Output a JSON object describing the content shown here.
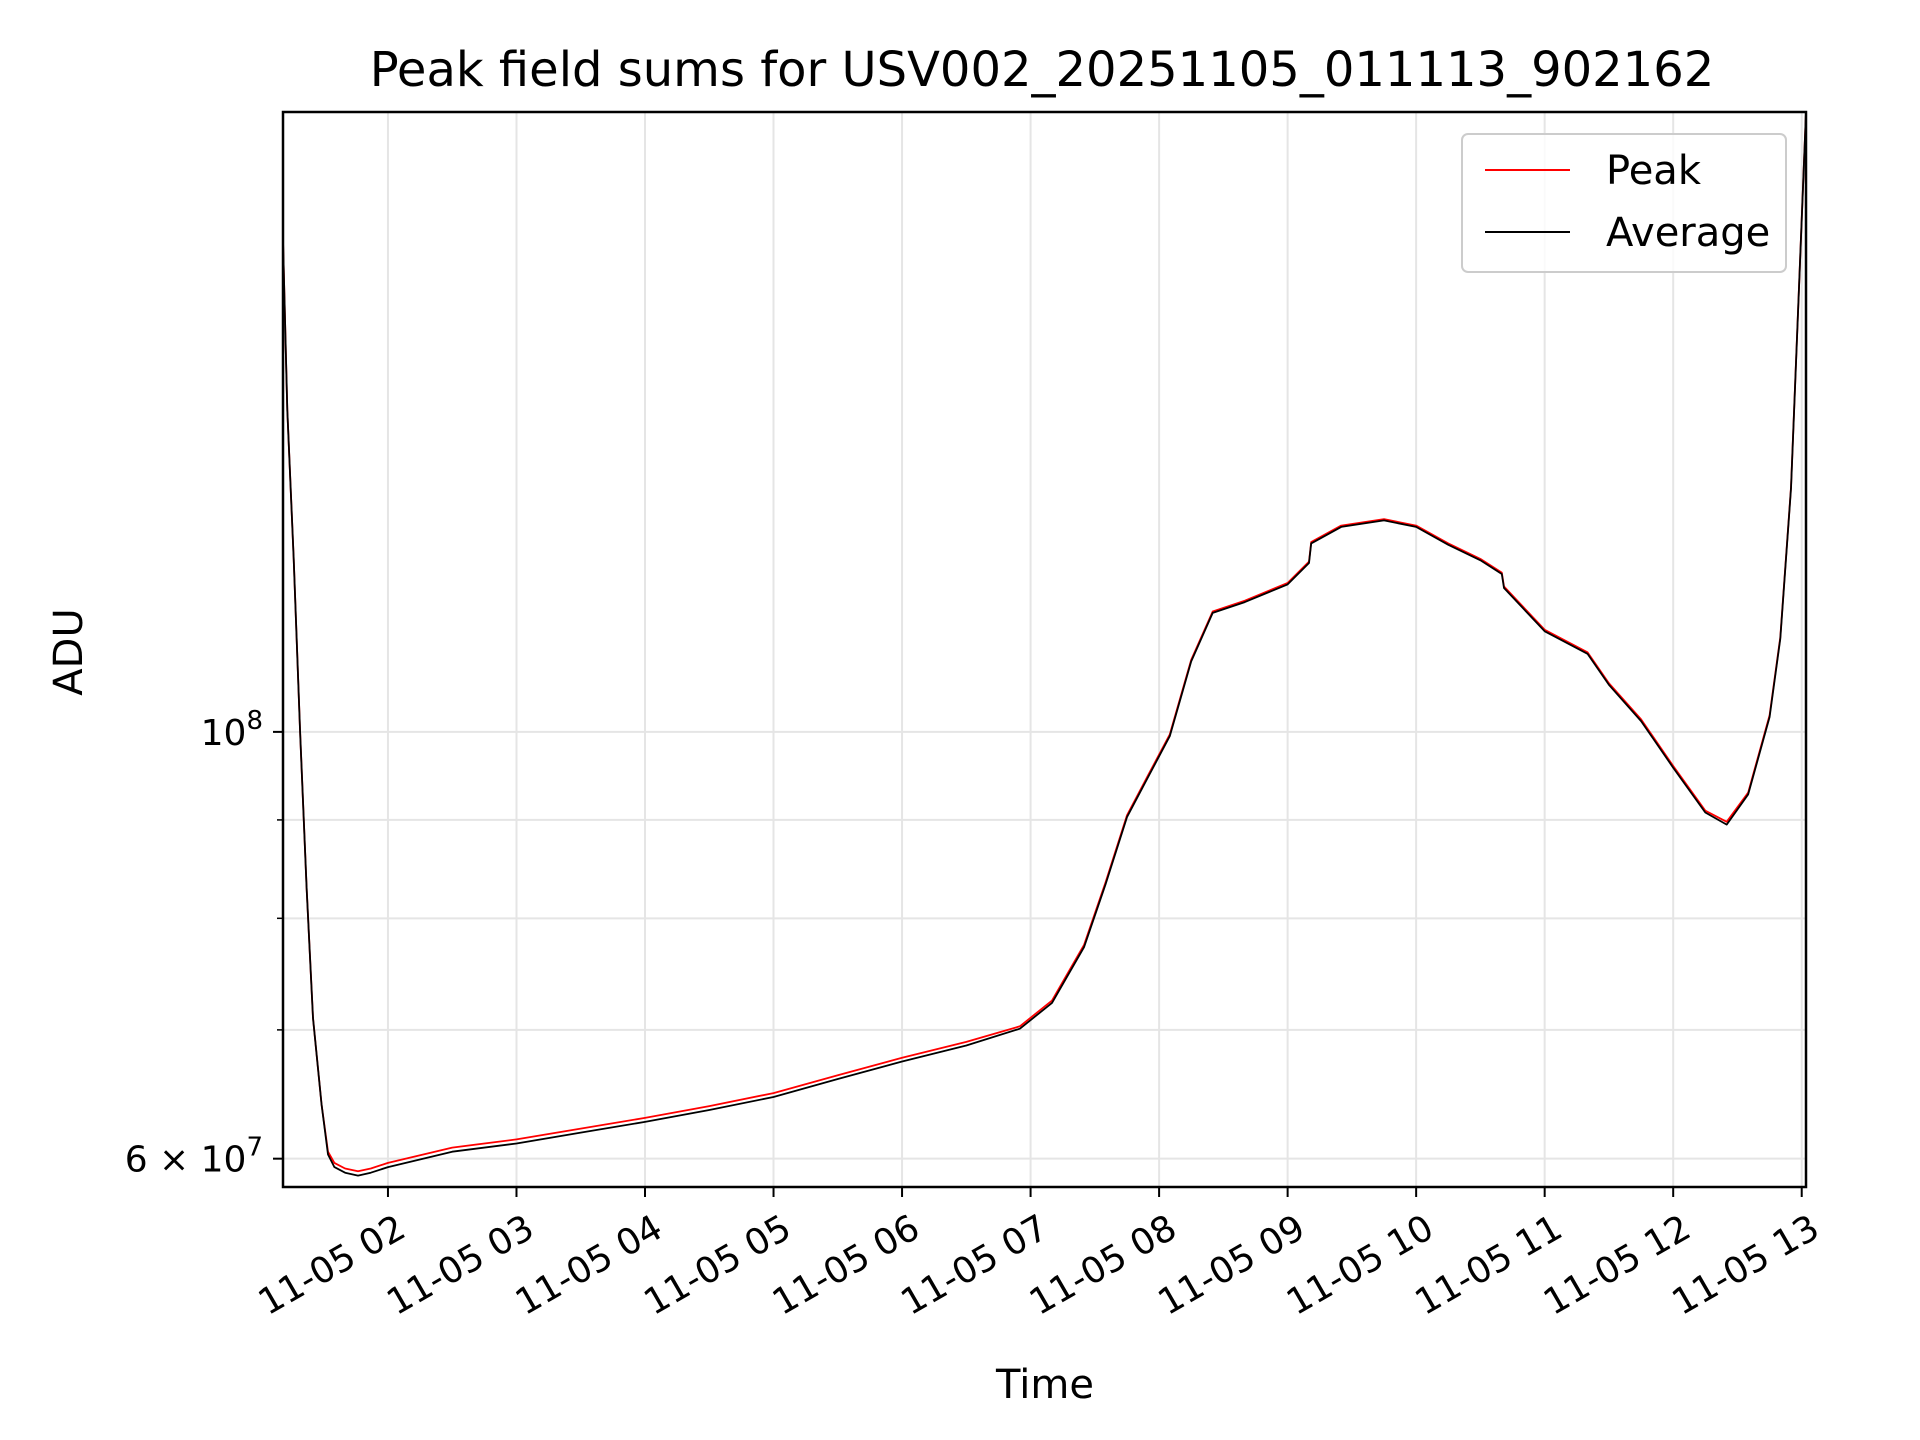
{
  "chart_data": {
    "type": "line",
    "title": "Peak field sums for USV002_20251105_011113_902162",
    "xlabel": "Time",
    "ylabel": "ADU",
    "yscale": "log",
    "ylim": [
      58000000,
      210000000
    ],
    "xlim": [
      "2025-11-05 01:11",
      "2025-11-05 13:02"
    ],
    "grid": true,
    "legend_position": "top-right",
    "x_ticks": [
      {
        "t": "2025-11-05 02:00",
        "label": "11-05 02"
      },
      {
        "t": "2025-11-05 03:00",
        "label": "11-05 03"
      },
      {
        "t": "2025-11-05 04:00",
        "label": "11-05 04"
      },
      {
        "t": "2025-11-05 05:00",
        "label": "11-05 05"
      },
      {
        "t": "2025-11-05 06:00",
        "label": "11-05 06"
      },
      {
        "t": "2025-11-05 07:00",
        "label": "11-05 07"
      },
      {
        "t": "2025-11-05 08:00",
        "label": "11-05 08"
      },
      {
        "t": "2025-11-05 09:00",
        "label": "11-05 09"
      },
      {
        "t": "2025-11-05 10:00",
        "label": "11-05 10"
      },
      {
        "t": "2025-11-05 11:00",
        "label": "11-05 11"
      },
      {
        "t": "2025-11-05 12:00",
        "label": "11-05 12"
      },
      {
        "t": "2025-11-05 13:00",
        "label": "11-05 13"
      }
    ],
    "y_major_ticks": [
      {
        "value": 100000000,
        "label_base": "10",
        "label_exp": "8"
      },
      {
        "value": 60000000,
        "label_base": "6 × 10",
        "label_exp": "7"
      }
    ],
    "y_minor_ticks": [
      70000000,
      80000000,
      90000000
    ],
    "x": [
      "2025-11-05 01:11",
      "2025-11-05 01:13",
      "2025-11-05 01:16",
      "2025-11-05 01:19",
      "2025-11-05 01:22",
      "2025-11-05 01:25",
      "2025-11-05 01:29",
      "2025-11-05 01:32",
      "2025-11-05 01:35",
      "2025-11-05 01:40",
      "2025-11-05 01:46",
      "2025-11-05 01:52",
      "2025-11-05 02:00",
      "2025-11-05 02:30",
      "2025-11-05 03:00",
      "2025-11-05 03:30",
      "2025-11-05 04:00",
      "2025-11-05 04:30",
      "2025-11-05 05:00",
      "2025-11-05 05:30",
      "2025-11-05 06:00",
      "2025-11-05 06:30",
      "2025-11-05 06:55",
      "2025-11-05 07:10",
      "2025-11-05 07:25",
      "2025-11-05 07:35",
      "2025-11-05 07:45",
      "2025-11-05 07:55",
      "2025-11-05 08:05",
      "2025-11-05 08:15",
      "2025-11-05 08:25",
      "2025-11-05 08:40",
      "2025-11-05 09:00",
      "2025-11-05 09:10",
      "2025-11-05 09:11",
      "2025-11-05 09:25",
      "2025-11-05 09:45",
      "2025-11-05 10:00",
      "2025-11-05 10:15",
      "2025-11-05 10:30",
      "2025-11-05 10:40",
      "2025-11-05 10:41",
      "2025-11-05 11:00",
      "2025-11-05 11:20",
      "2025-11-05 11:30",
      "2025-11-05 11:45",
      "2025-11-05 12:00",
      "2025-11-05 12:15",
      "2025-11-05 12:25",
      "2025-11-05 12:35",
      "2025-11-05 12:45",
      "2025-11-05 12:50",
      "2025-11-05 12:55",
      "2025-11-05 13:02"
    ],
    "series": [
      {
        "name": "Peak",
        "color": "#ff0000",
        "values": [
          180000000,
          147000000,
          123000000,
          100000000,
          83000000,
          71000000,
          64000000,
          60500000,
          59700000,
          59300000,
          59100000,
          59300000,
          59700000,
          60800000,
          61400000,
          62200000,
          63000000,
          63900000,
          64900000,
          66300000,
          67700000,
          69000000,
          70300000,
          72500000,
          77500000,
          83500000,
          90500000,
          95000000,
          99700000,
          109000000,
          115500000,
          117000000,
          119500000,
          122600000,
          125500000,
          128000000,
          129000000,
          128000000,
          125300000,
          123000000,
          121000000,
          119000000,
          113000000,
          110000000,
          106000000,
          101500000,
          96000000,
          91000000,
          89800000,
          93000000,
          102000000,
          112000000,
          134000000,
          210000000
        ]
      },
      {
        "name": "Average",
        "color": "#000000",
        "values": [
          180000000,
          147000000,
          123000000,
          100000000,
          83000000,
          71000000,
          64000000,
          60300000,
          59400000,
          59000000,
          58800000,
          59000000,
          59400000,
          60500000,
          61100000,
          61900000,
          62700000,
          63600000,
          64600000,
          66000000,
          67400000,
          68700000,
          70100000,
          72300000,
          77300000,
          83300000,
          90300000,
          94800000,
          99500000,
          108800000,
          115300000,
          116800000,
          119300000,
          122400000,
          125300000,
          127800000,
          128800000,
          127800000,
          125100000,
          122800000,
          120800000,
          118800000,
          112800000,
          109800000,
          105800000,
          101300000,
          95800000,
          90800000,
          89500000,
          92800000,
          101800000,
          111800000,
          133800000,
          210000000
        ]
      }
    ]
  }
}
